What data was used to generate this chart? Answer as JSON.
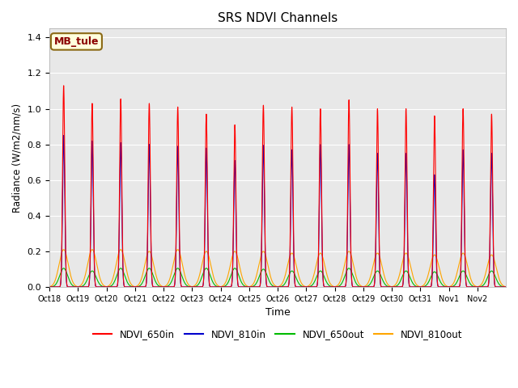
{
  "title": "SRS NDVI Channels",
  "xlabel": "Time",
  "ylabel": "Radiance (W/m2/nm/s)",
  "ylim": [
    0,
    1.45
  ],
  "yticks": [
    0.0,
    0.2,
    0.4,
    0.6,
    0.8,
    1.0,
    1.2,
    1.4
  ],
  "annotation_text": "MB_tule",
  "annotation_color": "#8B0000",
  "annotation_bg": "#FFFFDD",
  "annotation_border": "#8B6914",
  "colors": {
    "NDVI_650in": "#FF0000",
    "NDVI_810in": "#0000CC",
    "NDVI_650out": "#00BB00",
    "NDVI_810out": "#FFA500"
  },
  "xtick_labels": [
    "Oct 18",
    "Oct 19",
    "Oct 20",
    "Oct 21",
    "Oct 22",
    "Oct 23",
    "Oct 24",
    "Oct 25",
    "Oct 26",
    "Oct 27",
    "Oct 28",
    "Oct 29",
    "Oct 30",
    "Oct 31",
    "Nov 1",
    "Nov 2"
  ],
  "peak_650in": [
    1.13,
    1.03,
    1.055,
    1.03,
    1.01,
    0.97,
    0.91,
    1.02,
    1.01,
    1.0,
    1.05,
    1.0,
    1.0,
    0.96,
    1.0,
    0.97
  ],
  "peak_810in": [
    0.85,
    0.82,
    0.81,
    0.8,
    0.79,
    0.78,
    0.71,
    0.795,
    0.77,
    0.8,
    0.8,
    0.75,
    0.75,
    0.63,
    0.77,
    0.75
  ],
  "peak_650out": [
    0.105,
    0.09,
    0.105,
    0.105,
    0.105,
    0.105,
    0.105,
    0.1,
    0.09,
    0.09,
    0.105,
    0.09,
    0.09,
    0.085,
    0.09,
    0.09
  ],
  "peak_810out": [
    0.21,
    0.21,
    0.21,
    0.2,
    0.21,
    0.2,
    0.2,
    0.2,
    0.19,
    0.19,
    0.2,
    0.19,
    0.19,
    0.18,
    0.19,
    0.18
  ],
  "background_color": "#E8E8E8",
  "fig_background": "#FFFFFF",
  "linewidth": 0.8,
  "n_days": 16
}
